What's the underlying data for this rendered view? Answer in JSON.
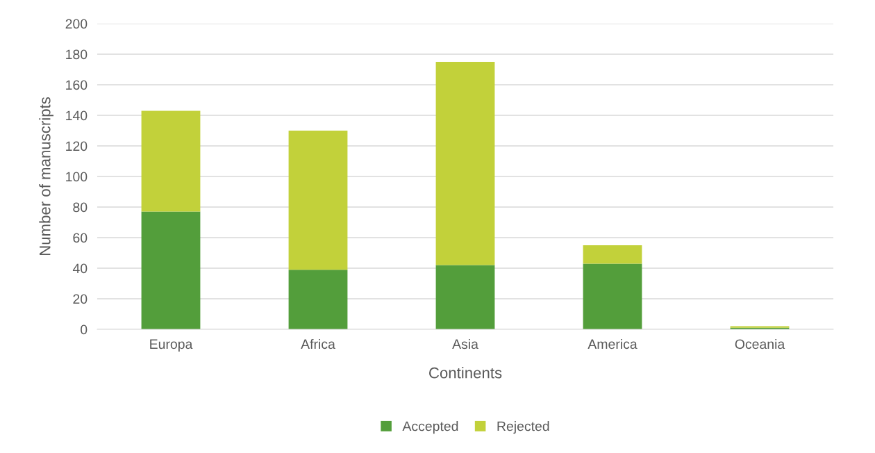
{
  "chart_data": {
    "type": "bar",
    "stacked": true,
    "xlabel": "Continents",
    "ylabel": "Number of manuscripts",
    "categories": [
      "Europa",
      "Africa",
      "Asia",
      "America",
      "Oceania"
    ],
    "series": [
      {
        "name": "Accepted",
        "color": "#539e3b",
        "values": [
          77,
          39,
          42,
          43,
          1
        ]
      },
      {
        "name": "Rejected",
        "color": "#c2d13a",
        "values": [
          66,
          91,
          133,
          12,
          1
        ]
      }
    ],
    "ylim": [
      0,
      200
    ],
    "yticks": [
      0,
      20,
      40,
      60,
      80,
      100,
      120,
      140,
      160,
      180,
      200
    ],
    "grid": "y",
    "legend": "bottom"
  }
}
